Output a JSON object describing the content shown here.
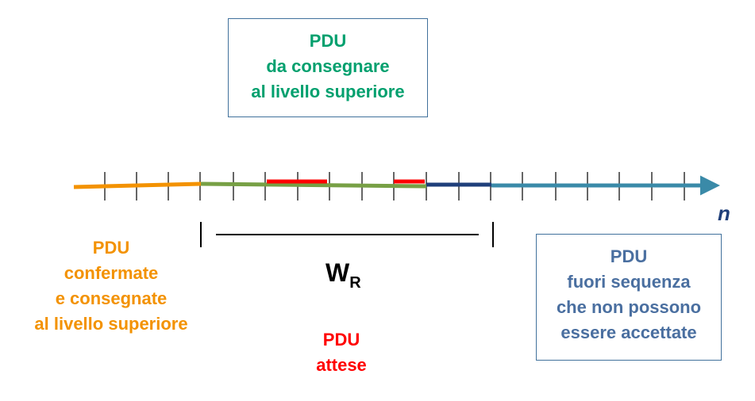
{
  "top_box": {
    "lines": [
      "PDU",
      "da consegnare",
      "al livello superiore"
    ],
    "color": "#00a06e"
  },
  "left_label": {
    "lines": [
      "PDU",
      "confermate",
      "e consegnate",
      "al livello superiore"
    ],
    "color": "#f39200"
  },
  "right_box": {
    "lines": [
      "PDU",
      "fuori sequenza",
      "che non possono",
      "essere accettate"
    ],
    "color": "#4a6fa0"
  },
  "center_label": {
    "lines": [
      "PDU",
      "attese"
    ],
    "color": "#ff0000"
  },
  "window": {
    "main": "W",
    "sub": "R"
  },
  "axis_label": "n",
  "colors": {
    "orange": "#f39200",
    "green": "#77a045",
    "red": "#ff0000",
    "navy": "#1f3f7a",
    "teal": "#3a8aa8",
    "axis_label": "#1f3f7a"
  }
}
